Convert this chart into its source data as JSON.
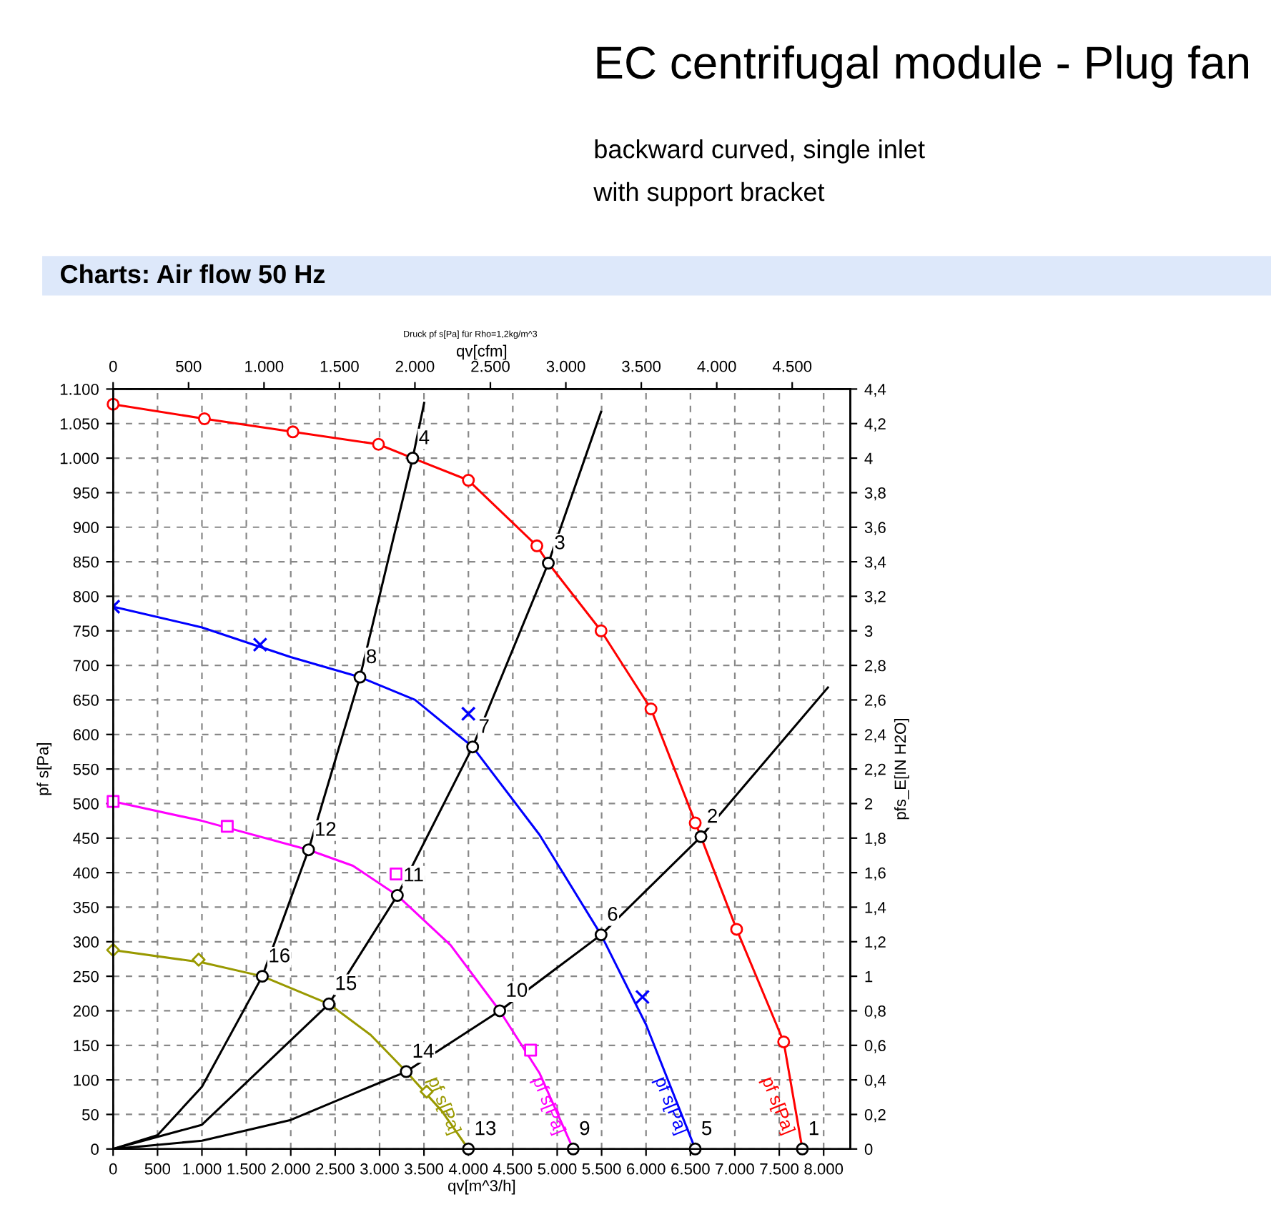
{
  "chart_data": {
    "type": "line",
    "title": "EC centrifugal module - Plug fan",
    "subtitle": "backward curved, single inlet\nwith support bracket",
    "legend_title": "Charts: Air flow 50 Hz",
    "xlabel": "qv[m^3/h]",
    "ylabel": "pf s[Pa]",
    "y2label": "pfs_E[IN H2O]",
    "x2label": "qv[cfm]",
    "xlim": [
      0,
      8300
    ],
    "ylim": [
      0,
      1100
    ],
    "xticks": [
      0,
      500,
      {
        "value": 1000,
        "label": "1.000"
      },
      {
        "value": 1500,
        "label": "1.500"
      },
      {
        "value": 2000,
        "label": "2.000"
      },
      {
        "value": 2500,
        "label": "2.500"
      },
      {
        "value": 3000,
        "label": "3.000"
      },
      {
        "value": 3500,
        "label": "3.500"
      },
      {
        "value": 4000,
        "label": "4.000"
      },
      {
        "value": 4500,
        "label": "4.500"
      },
      {
        "value": 5000,
        "label": "5.000"
      },
      {
        "value": 5500,
        "label": "5.500"
      },
      {
        "value": 6000,
        "label": "6.000"
      },
      {
        "value": 6500,
        "label": "6.500"
      },
      {
        "value": 7000,
        "label": "7.000"
      },
      {
        "value": 7500,
        "label": "7.500"
      },
      {
        "value": 8000,
        "label": "8.000"
      }
    ],
    "yticks": [
      0,
      50,
      100,
      150,
      200,
      250,
      300,
      350,
      400,
      450,
      500,
      550,
      600,
      650,
      700,
      750,
      800,
      850,
      900,
      950,
      {
        "value": 1000,
        "label": "1.000"
      },
      {
        "value": 1050,
        "label": "1.050"
      },
      {
        "value": 1100,
        "label": "1.100"
      }
    ],
    "x2lim": [
      0,
      4885
    ],
    "x2ticks": [
      0,
      500,
      {
        "value": 1000,
        "label": "1.000"
      },
      {
        "value": 1500,
        "label": "1.500"
      },
      {
        "value": 2000,
        "label": "2.000"
      },
      {
        "value": 2500,
        "label": "2.500"
      },
      {
        "value": 3000,
        "label": "3.000"
      },
      {
        "value": 3500,
        "label": "3.500"
      },
      {
        "value": 4000,
        "label": "4.000"
      },
      {
        "value": 4500,
        "label": "4.500"
      }
    ],
    "y2lim": [
      0,
      4.4
    ],
    "y2ticks": [
      0,
      {
        "value": 0.2,
        "label": "0,2"
      },
      {
        "value": 0.4,
        "label": "0,4"
      },
      {
        "value": 0.6,
        "label": "0,6"
      },
      {
        "value": 0.8,
        "label": "0,8"
      },
      1,
      {
        "value": 1.2,
        "label": "1,2"
      },
      {
        "value": 1.4,
        "label": "1,4"
      },
      {
        "value": 1.6,
        "label": "1,6"
      },
      {
        "value": 1.8,
        "label": "1,8"
      },
      2,
      {
        "value": 2.2,
        "label": "2,2"
      },
      {
        "value": 2.4,
        "label": "2,4"
      },
      {
        "value": 2.6,
        "label": "2,6"
      },
      {
        "value": 2.8,
        "label": "2,8"
      },
      3,
      {
        "value": 3.2,
        "label": "3,2"
      },
      {
        "value": 3.4,
        "label": "3,4"
      },
      {
        "value": 3.6,
        "label": "3,6"
      },
      {
        "value": 3.8,
        "label": "3,8"
      },
      4,
      {
        "value": 4.2,
        "label": "4,2"
      },
      {
        "value": 4.4,
        "label": "4,4"
      }
    ],
    "grid": true,
    "legend": false,
    "line_style": "solid",
    "series": [
      {
        "name": "pf s[Pa]",
        "color": "#ff0000",
        "x": [
          0,
          1028,
          2024,
          2988,
          3373,
          4000,
          4771,
          4900,
          5494,
          6056,
          6618,
          7020,
          7550,
          7760
        ],
        "values": [
          1078,
          1057,
          1038,
          1020,
          1000,
          968,
          873,
          848,
          750,
          637,
          452,
          318,
          155,
          0
        ]
      },
      {
        "name": "pf s[Pa]",
        "color": "#0000ff",
        "x": [
          0,
          1000,
          2000,
          2779,
          3400,
          4048,
          4800,
          5494,
          6000,
          6554
        ],
        "values": [
          785,
          755,
          712,
          683,
          650,
          582,
          455,
          310,
          180,
          0
        ]
      },
      {
        "name": "pf s[Pa]",
        "color": "#ff00ff",
        "x": [
          0,
          1000,
          2200,
          2700,
          3200,
          3800,
          4353,
          4800,
          5180
        ],
        "values": [
          503,
          475,
          433,
          410,
          367,
          295,
          200,
          110,
          0
        ]
      },
      {
        "name": "pf s[Pa]",
        "color": "#999900",
        "x": [
          0,
          1000,
          1680,
          2430,
          2900,
          3300,
          3700,
          4000
        ],
        "values": [
          288,
          270,
          250,
          210,
          165,
          112,
          55,
          0
        ]
      },
      {
        "color": "#000000",
        "x": [
          0,
          500,
          1000,
          1680,
          2200,
          2779,
          3373,
          3502
        ],
        "values": [
          0,
          20,
          90,
          250,
          433,
          683,
          1000,
          1080
        ]
      },
      {
        "color": "#000000",
        "x": [
          0,
          1000,
          2430,
          3200,
          4048,
          4900,
          5494
        ],
        "values": [
          0,
          35,
          210,
          367,
          582,
          848,
          1067
        ]
      },
      {
        "color": "#000000",
        "x": [
          0,
          1000,
          2000,
          3300,
          4353,
          5494,
          6618,
          8048
        ],
        "values": [
          0,
          12,
          42,
          112,
          200,
          310,
          452,
          668
        ]
      },
      {
        "type": "scatter",
        "marker": "circle",
        "color": "#ff0000",
        "x": [
          0,
          1028,
          2024,
          2988,
          4000,
          4771,
          5494,
          6056,
          6554,
          7020,
          7550
        ],
        "values": [
          1078,
          1057,
          1038,
          1020,
          968,
          873,
          750,
          637,
          472,
          318,
          155
        ]
      },
      {
        "type": "scatter",
        "marker": "cross",
        "color": "#0000ff",
        "x": [
          0,
          1655,
          4000,
          5960
        ],
        "values": [
          785,
          730,
          630,
          220
        ]
      },
      {
        "type": "scatter",
        "marker": "square",
        "color": "#ff00ff",
        "x": [
          0,
          1285,
          3186,
          4700
        ],
        "values": [
          503,
          467,
          398,
          143
        ]
      },
      {
        "type": "scatter",
        "marker": "diamond",
        "color": "#999900",
        "x": [
          0,
          963,
          3530
        ],
        "values": [
          288,
          274,
          83
        ]
      },
      {
        "type": "scatter",
        "marker": "circle",
        "color": "#000000",
        "x": [
          7760,
          6618,
          4900,
          3373,
          6554,
          5494,
          4048,
          2779,
          5180,
          4353,
          3200,
          2200,
          4000,
          3300,
          2430,
          1680
        ],
        "values": [
          0,
          452,
          848,
          1000,
          0,
          310,
          582,
          683,
          0,
          200,
          367,
          433,
          0,
          112,
          210,
          250
        ]
      }
    ],
    "annotations": [
      "Druck pf s[Pa] für Rho=1,2kg/m^3",
      {
        "text": "1",
        "x": 7760,
        "y": 0
      },
      {
        "text": "2",
        "x": 6618,
        "y": 452
      },
      {
        "text": "3",
        "x": 4900,
        "y": 848
      },
      {
        "text": "4",
        "x": 3373,
        "y": 1000
      },
      {
        "text": "5",
        "x": 6554,
        "y": 0
      },
      {
        "text": "6",
        "x": 5494,
        "y": 310
      },
      {
        "text": "7",
        "x": 4048,
        "y": 582
      },
      {
        "text": "8",
        "x": 2779,
        "y": 683
      },
      {
        "text": "9",
        "x": 5180,
        "y": 0
      },
      {
        "text": "10",
        "x": 4353,
        "y": 200
      },
      {
        "text": "11",
        "x": 3200,
        "y": 367
      },
      {
        "text": "12",
        "x": 2200,
        "y": 433
      },
      {
        "text": "13",
        "x": 4000,
        "y": 0
      },
      {
        "text": "14",
        "x": 3300,
        "y": 112
      },
      {
        "text": "15",
        "x": 2430,
        "y": 210
      },
      {
        "text": "16",
        "x": 1680,
        "y": 250
      }
    ]
  }
}
